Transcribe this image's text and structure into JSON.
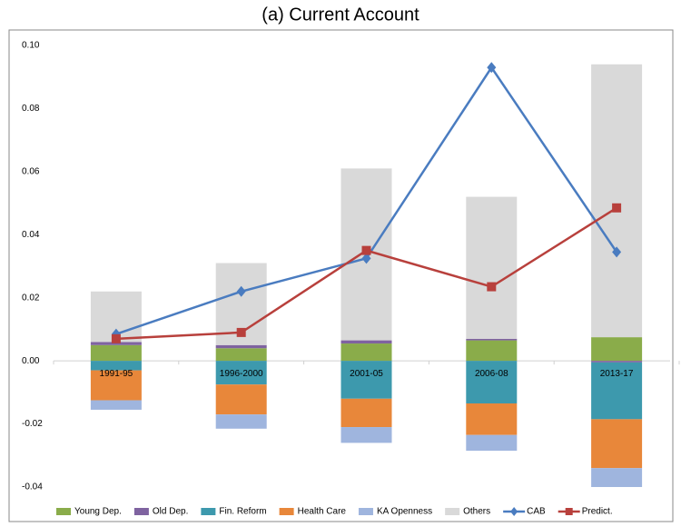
{
  "chart_data": {
    "type": "bar",
    "title": "(a) Current Account",
    "categories": [
      "1991-95",
      "1996-2000",
      "2001-05",
      "2006-08",
      "2013-17"
    ],
    "stacked": true,
    "ylim": [
      -0.04,
      0.1
    ],
    "yticks": [
      -0.04,
      -0.02,
      {
        "value": 0,
        "label": "0.00"
      },
      0.02,
      0.04,
      0.06,
      0.08,
      {
        "value": 0.1,
        "label": "0.10"
      }
    ],
    "legend": "bottom",
    "series": [
      {
        "name": "Young Dep.",
        "type": "bar",
        "color": "#8aac4a",
        "values": [
          0.005,
          0.004,
          0.0055,
          0.0065,
          0.0075
        ]
      },
      {
        "name": "Old Dep.",
        "type": "bar",
        "color": "#7f63a0",
        "values": [
          0.001,
          0.001,
          0.001,
          0.0005,
          -0.0005
        ]
      },
      {
        "name": "Fin. Reform",
        "type": "bar",
        "color": "#3d99ad",
        "values": [
          -0.003,
          -0.0075,
          -0.012,
          -0.0135,
          -0.018
        ]
      },
      {
        "name": "Health Care",
        "type": "bar",
        "color": "#e8873a",
        "values": [
          -0.0095,
          -0.0095,
          -0.009,
          -0.01,
          -0.0155
        ]
      },
      {
        "name": "KA Openness",
        "type": "bar",
        "color": "#9fb5de",
        "values": [
          -0.003,
          -0.0045,
          -0.005,
          -0.005,
          -0.006
        ]
      },
      {
        "name": "Others",
        "type": "bar",
        "color": "#d9d9d9",
        "values": [
          0.016,
          0.026,
          0.0545,
          0.045,
          0.0865
        ]
      },
      {
        "name": "CAB",
        "type": "line",
        "marker": "diamond",
        "color": "#4a7cc0",
        "values": [
          0.0085,
          0.022,
          0.0325,
          0.093,
          0.0345
        ]
      },
      {
        "name": "Predict.",
        "type": "line",
        "marker": "square",
        "color": "#b8403c",
        "values": [
          0.007,
          0.009,
          0.035,
          0.0235,
          0.0485
        ]
      }
    ]
  }
}
